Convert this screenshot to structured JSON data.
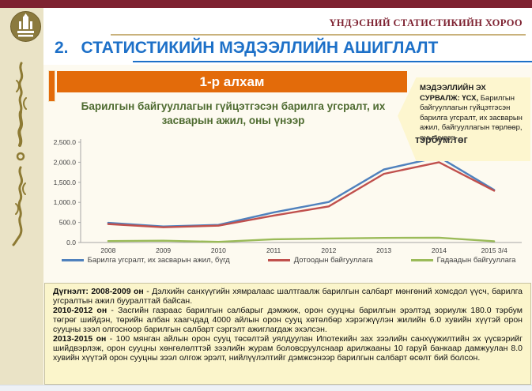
{
  "header": {
    "org_name": "ҮНДЭСНИЙ СТАТИСТИКИЙН ХОРОО",
    "title_number": "2.",
    "title": "СТАТИСТИКИЙН МЭДЭЭЛЛИЙН АШИГЛАЛТ"
  },
  "banner": {
    "label": "1-р алхам"
  },
  "callout": {
    "bold": "МЭДЭЭЛЛИЙН ЭХ СУРВАЛЖ: ҮСХ,",
    "text": " Барилгын байгууллагын гүйцэтгэсэн барилга угсралт, их засварын ажил, байгууллагын төрлөөр, оны үнээр",
    "overlay": "тэрбум.төг"
  },
  "chart_data": {
    "type": "line",
    "title": "Барилгын байгууллагын гүйцэтгэсэн барилга угсралт, их засварын ажил, оны үнээр",
    "categories": [
      "2008",
      "2009",
      "2010",
      "2011",
      "2012",
      "2013",
      "2014",
      "2015 3/4"
    ],
    "series": [
      {
        "name": "Барилга угсралт, их засварын ажил, бүгд",
        "color": "#4F81BD",
        "values": [
          490,
          400,
          440,
          750,
          1010,
          1820,
          2130,
          1310
        ]
      },
      {
        "name": "Дотоодын байгууллага",
        "color": "#C0504D",
        "values": [
          460,
          380,
          420,
          670,
          900,
          1710,
          2000,
          1290
        ]
      },
      {
        "name": "Гадаадын байгууллага",
        "color": "#9BBB59",
        "values": [
          35,
          45,
          15,
          80,
          100,
          115,
          120,
          30
        ]
      }
    ],
    "ylim": [
      0,
      2500
    ],
    "y_tick_labels": [
      "0.0",
      "500.0",
      "1,000.0",
      "1,500.0",
      "2,000.0",
      "2,500.0"
    ],
    "xlabel": "",
    "ylabel": "",
    "grid": false,
    "legend_position": "bottom"
  },
  "summary": {
    "p1_bold": "Дүгнэлт: 2008-2009 он",
    "p1_text": " - Дэлхийн санхүүгийн хямралаас шалтгаалж барилгын салбарт мөнгөний хомсдол үүсч, барилга угсралтын ажил бууралттай байсан.",
    "p2_bold": "2010-2012 он",
    "p2_text": " - Засгийн газраас барилгын салбарыг дэмжиж, орон сууцны барилгын эрэлтэд зориулж 180.0 тэрбум төгрөг шийдэн, төрийн албан хаагчдад 4000 айлын орон сууц хөтөлбөр хэрэгжүүлэн жилийн 6.0 хувийн хүүтэй орон сууцны зээл олгосноор барилгын салбарт сэргэлт ажиглагдаж эхэлсэн.",
    "p3_bold": "2013-2015 он",
    "p3_text": " - 100 мянган айлын орон сууц төсөлтэй уялдуулан Ипотекийн зах зээлийн санхүүжилтийн эх үүсвэрийг шийдвэрлэж, орон сууцны хөнгөлөлттэй зээлийн журам боловсруулснаар арилжааны 10 гаруй банкаар дамжуулан 8.0 хувийн хүүтэй орон сууцны зээл олгож эрэлт, нийлүүлэлтийг дэмжсэнээр барилгын салбарт өсөлт бий болсон."
  },
  "colors": {
    "top_bar": "#7e2231",
    "sidebar": "#eae3c6",
    "title_blue": "#1d70c8",
    "banner_orange": "#e36b0a",
    "chart_title_green": "#4e6b30",
    "callout_yellow": "#fdf6cf",
    "summary_yellow": "#fbf5cb",
    "series_blue": "#4F81BD",
    "series_red": "#C0504D",
    "series_green": "#9BBB59"
  }
}
